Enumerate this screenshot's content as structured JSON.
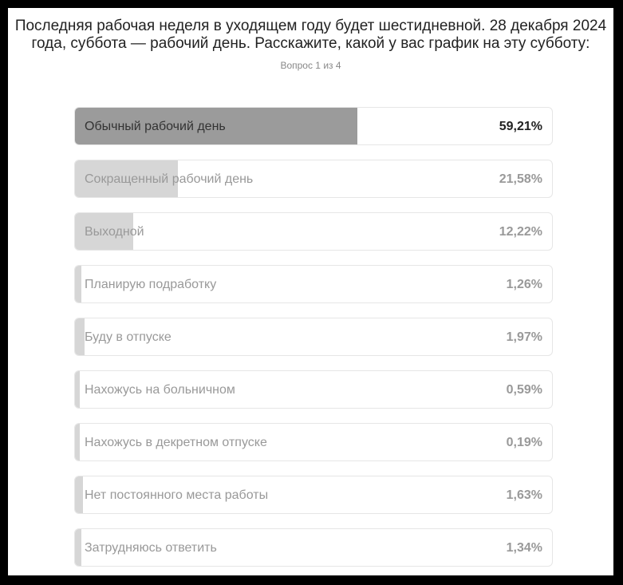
{
  "title": "Последняя рабочая неделя в уходящем году будет шестидневной. 28 декабря 2024 года, суббота — рабочий день.  Расскажите, какой у вас график на эту субботу:",
  "progress": "Вопрос 1 из 4",
  "chart_data": {
    "type": "bar",
    "title": "Последняя рабочая неделя в уходящем году будет шестидневной. 28 декабря 2024 года, суббота — рабочий день.  Расскажите, какой у вас график на эту субботу:",
    "xlabel": "",
    "ylabel": "",
    "unit": "%",
    "ylim": [
      0,
      100
    ],
    "grid": false,
    "categories": [
      "Обычный рабочий день",
      "Сокращенный рабочий день",
      "Выходной",
      "Планирую подработку",
      "Буду в отпуске",
      "Нахожусь на больничном",
      "Нахожусь в декретном отпуске",
      "Нет постоянного места работы",
      "Затрудняюсь ответить"
    ],
    "values": [
      59.21,
      21.58,
      12.22,
      1.26,
      1.97,
      0.59,
      0.19,
      1.63,
      1.34
    ],
    "value_labels": [
      "59,21%",
      "21,58%",
      "12,22%",
      "1,26%",
      "1,97%",
      "0,59%",
      "0,19%",
      "1,63%",
      "1,34%"
    ],
    "colors": {
      "top": "#9b9b9b",
      "other": "#d6d6d6"
    }
  }
}
